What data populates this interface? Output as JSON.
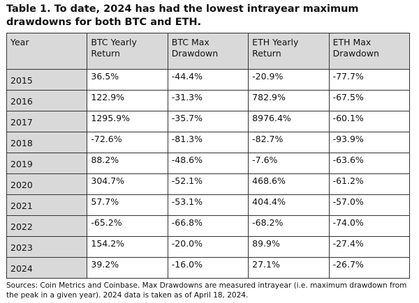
{
  "title": "Table 1. To date, 2024 has had the lowest intrayear maximum drawdowns for both BTC and ETH.",
  "headers": [
    "Year",
    "BTC Yearly Return",
    "BTC Max Drawdown",
    "ETH Yearly Return",
    "ETH Max Drawdown"
  ],
  "rows": [
    [
      "2015",
      "36.5%",
      "-44.4%",
      "-20.9%",
      "-77.7%"
    ],
    [
      "2016",
      "122.9%",
      "-31.3%",
      "782.9%",
      "-67.5%"
    ],
    [
      "2017",
      "1295.9%",
      "-35.7%",
      "8976.4%",
      "-60.1%"
    ],
    [
      "2018",
      "-72.6%",
      "-81.3%",
      "-82.7%",
      "-93.9%"
    ],
    [
      "2019",
      "88.2%",
      "-48.6%",
      "-7.6%",
      "-63.6%"
    ],
    [
      "2020",
      "304.7%",
      "-52.1%",
      "468.6%",
      "-61.2%"
    ],
    [
      "2021",
      "57.7%",
      "-53.1%",
      "404.4%",
      "-57.0%"
    ],
    [
      "2022",
      "-65.2%",
      "-66.8%",
      "-68.2%",
      "-74.0%"
    ],
    [
      "2023",
      "154.2%",
      "-20.0%",
      "89.9%",
      "-27.4%"
    ],
    [
      "2024",
      "39.2%",
      "-16.0%",
      "27.1%",
      "-26.7%"
    ]
  ],
  "footnote": "Sources: Coin Metrics and Coinbase. Max Drawdowns are measured intrayear (i.e. maximum drawdown from the peak in a given year). 2024 data is taken as of April 18, 2024."
}
